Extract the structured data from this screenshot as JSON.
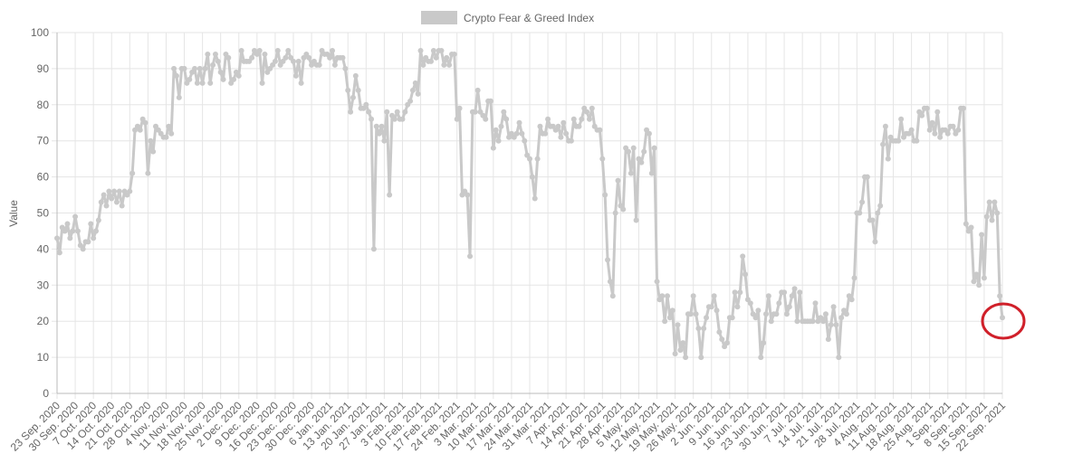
{
  "chart_data": {
    "type": "line",
    "series": [
      {
        "name": "Crypto Fear & Greed Index",
        "color": "#c9c9c9",
        "values": [
          43,
          39,
          46,
          45,
          47,
          43,
          45,
          49,
          45,
          41,
          40,
          42,
          42,
          47,
          43,
          45,
          48,
          53,
          55,
          52,
          56,
          54,
          56,
          53,
          56,
          52,
          56,
          55,
          56,
          61,
          73,
          74,
          73,
          76,
          75,
          61,
          70,
          67,
          74,
          73,
          72,
          71,
          71,
          74,
          72,
          90,
          88,
          82,
          90,
          90,
          86,
          87,
          89,
          90,
          86,
          90,
          86,
          90,
          94,
          86,
          91,
          94,
          92,
          89,
          87,
          94,
          93,
          86,
          87,
          89,
          88,
          95,
          92,
          92,
          92,
          93,
          95,
          94,
          95,
          86,
          94,
          89,
          90,
          91,
          92,
          95,
          91,
          92,
          93,
          95,
          93,
          92,
          88,
          92,
          86,
          93,
          94,
          93,
          91,
          92,
          91,
          91,
          95,
          94,
          94,
          93,
          95,
          91,
          93,
          93,
          93,
          90,
          84,
          78,
          82,
          88,
          84,
          79,
          79,
          80,
          78,
          76,
          40,
          74,
          72,
          74,
          70,
          78,
          55,
          77,
          76,
          78,
          76,
          76,
          78,
          80,
          81,
          84,
          86,
          83,
          95,
          91,
          93,
          92,
          92,
          95,
          93,
          95,
          95,
          91,
          93,
          91,
          94,
          94,
          76,
          79,
          55,
          56,
          55,
          38,
          78,
          78,
          84,
          78,
          77,
          76,
          81,
          81,
          68,
          73,
          70,
          74,
          78,
          76,
          71,
          72,
          71,
          72,
          75,
          72,
          70,
          66,
          65,
          60,
          54,
          65,
          74,
          72,
          72,
          76,
          74,
          74,
          73,
          74,
          71,
          75,
          72,
          70,
          70,
          76,
          74,
          74,
          76,
          79,
          78,
          76,
          79,
          74,
          73,
          73,
          65,
          55,
          37,
          31,
          27,
          50,
          59,
          52,
          51,
          68,
          67,
          61,
          68,
          48,
          65,
          64,
          67,
          73,
          72,
          61,
          68,
          31,
          26,
          27,
          20,
          27,
          21,
          23,
          11,
          19,
          12,
          14,
          10,
          22,
          22,
          27,
          22,
          18,
          10,
          18,
          21,
          24,
          24,
          27,
          23,
          17,
          15,
          13,
          14,
          21,
          21,
          28,
          24,
          28,
          38,
          33,
          26,
          25,
          22,
          21,
          23,
          10,
          14,
          22,
          27,
          20,
          22,
          22,
          25,
          28,
          28,
          22,
          24,
          27,
          29,
          20,
          28,
          20,
          20,
          20,
          20,
          20,
          25,
          20,
          21,
          20,
          22,
          15,
          19,
          24,
          19,
          10,
          21,
          23,
          22,
          27,
          26,
          32,
          50,
          50,
          53,
          60,
          60,
          48,
          48,
          42,
          50,
          52,
          69,
          74,
          65,
          71,
          70,
          70,
          70,
          76,
          71,
          72,
          72,
          73,
          70,
          70,
          78,
          77,
          79,
          79,
          73,
          75,
          72,
          78,
          71,
          73,
          73,
          72,
          74,
          74,
          72,
          73,
          79,
          79,
          47,
          45,
          46,
          31,
          33,
          30,
          44,
          32,
          49,
          53,
          48,
          53,
          50,
          27,
          21
        ]
      }
    ],
    "categories": [
      "23 Sep. 2020",
      null,
      null,
      null,
      null,
      null,
      null,
      "30 Sep. 2020",
      null,
      null,
      null,
      null,
      null,
      null,
      "7 Oct. 2020",
      null,
      null,
      null,
      null,
      null,
      null,
      "14 Oct. 2020",
      null,
      null,
      null,
      null,
      null,
      null,
      "21 Oct. 2020",
      null,
      null,
      null,
      null,
      null,
      null,
      "28 Oct. 2020",
      null,
      null,
      null,
      null,
      null,
      null,
      "4 Nov. 2020",
      null,
      null,
      null,
      null,
      null,
      null,
      "11 Nov. 2020",
      null,
      null,
      null,
      null,
      null,
      null,
      "18 Nov. 2020",
      null,
      null,
      null,
      null,
      null,
      null,
      "25 Nov. 2020",
      null,
      null,
      null,
      null,
      null,
      null,
      "2 Dec. 2020",
      null,
      null,
      null,
      null,
      null,
      null,
      "9 Dec. 2020",
      null,
      null,
      null,
      null,
      null,
      null,
      "16 Dec. 2020",
      null,
      null,
      null,
      null,
      null,
      null,
      "23 Dec. 2020",
      null,
      null,
      null,
      null,
      null,
      null,
      "30 Dec. 2020",
      null,
      null,
      null,
      null,
      null,
      null,
      "6 Jan. 2021",
      null,
      null,
      null,
      null,
      null,
      null,
      "13 Jan. 2021",
      null,
      null,
      null,
      null,
      null,
      null,
      "20 Jan. 2021",
      null,
      null,
      null,
      null,
      null,
      null,
      "27 Jan. 2021",
      null,
      null,
      null,
      null,
      null,
      null,
      "3 Feb. 2021",
      null,
      null,
      null,
      null,
      null,
      null,
      "10 Feb. 2021",
      null,
      null,
      null,
      null,
      null,
      null,
      "17 Feb. 2021",
      null,
      null,
      null,
      null,
      null,
      null,
      "24 Feb. 2021",
      null,
      null,
      null,
      null,
      null,
      null,
      "3 Mar. 2021",
      null,
      null,
      null,
      null,
      null,
      null,
      "10 Mar. 2021",
      null,
      null,
      null,
      null,
      null,
      null,
      "17 Mar. 2021",
      null,
      null,
      null,
      null,
      null,
      null,
      "24 Mar. 2021",
      null,
      null,
      null,
      null,
      null,
      null,
      "31 Mar. 2021",
      null,
      null,
      null,
      null,
      null,
      null,
      "7 Apr. 2021",
      null,
      null,
      null,
      null,
      null,
      null,
      "14 Apr. 2021",
      null,
      null,
      null,
      null,
      null,
      null,
      "21 Apr. 2021",
      null,
      null,
      null,
      null,
      null,
      null,
      "28 Apr. 2021",
      null,
      null,
      null,
      null,
      null,
      null,
      "5 May. 2021",
      null,
      null,
      null,
      null,
      null,
      null,
      "12 May. 2021",
      null,
      null,
      null,
      null,
      null,
      null,
      "19 May. 2021",
      null,
      null,
      null,
      null,
      null,
      null,
      "26 May. 2021",
      null,
      null,
      null,
      null,
      null,
      null,
      "2 Jun. 2021",
      null,
      null,
      null,
      null,
      null,
      null,
      "9 Jun. 2021",
      null,
      null,
      null,
      null,
      null,
      null,
      "16 Jun. 2021",
      null,
      null,
      null,
      null,
      null,
      null,
      "23 Jun. 2021",
      null,
      null,
      null,
      null,
      null,
      null,
      "30 Jun. 2021",
      null,
      null,
      null,
      null,
      null,
      null,
      "7 Jul. 2021",
      null,
      null,
      null,
      null,
      null,
      null,
      "14 Jul. 2021",
      null,
      null,
      null,
      null,
      null,
      null,
      "21 Jul. 2021",
      null,
      null,
      null,
      null,
      null,
      null,
      "28 Jul. 2021",
      null,
      null,
      null,
      null,
      null,
      null,
      "4 Aug. 2021",
      null,
      null,
      null,
      null,
      null,
      null,
      "11 Aug. 2021",
      null,
      null,
      null,
      null,
      null,
      null,
      "18 Aug. 2021",
      null,
      null,
      null,
      null,
      null,
      null,
      "25 Aug. 2021",
      null,
      null,
      null,
      null,
      null,
      null,
      "1 Sep. 2021",
      null,
      null,
      null,
      null,
      null,
      null,
      "8 Sep. 2021",
      null,
      null,
      null,
      null,
      null,
      null,
      "15 Sep. 2021",
      null,
      null,
      null,
      null,
      null,
      null,
      "22 Sep. 2021"
    ],
    "ylabel": "Value",
    "ylim": [
      0,
      100
    ],
    "yticks": [
      0,
      10,
      20,
      30,
      40,
      50,
      60,
      70,
      80,
      90,
      100
    ],
    "grid": true,
    "legend": "top"
  }
}
